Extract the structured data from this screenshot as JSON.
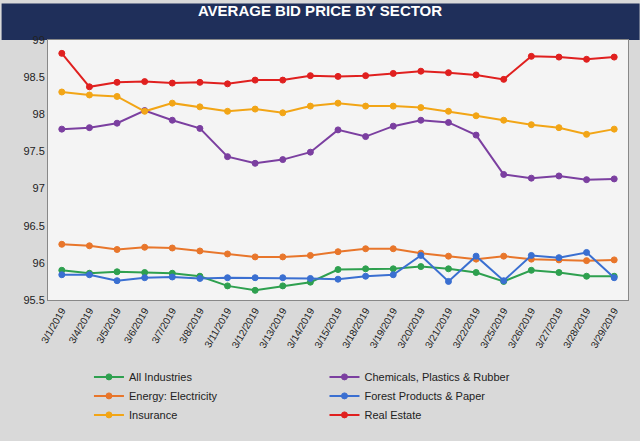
{
  "chart_data": {
    "type": "line",
    "title": "AVERAGE BID PRICE BY SECTOR",
    "categories": [
      "3/1/2019",
      "3/4/2019",
      "3/5/2019",
      "3/6/2019",
      "3/7/2019",
      "3/8/2019",
      "3/11/2019",
      "3/12/2019",
      "3/13/2019",
      "3/14/2019",
      "3/15/2019",
      "3/18/2019",
      "3/19/2019",
      "3/20/2019",
      "3/21/2019",
      "3/22/2019",
      "3/25/2019",
      "3/26/2019",
      "3/27/2019",
      "3/28/2019",
      "3/29/2019"
    ],
    "series": [
      {
        "name": "All Industries",
        "color": "#2ea04f",
        "marker": "circle",
        "values": [
          95.9,
          95.86,
          95.88,
          95.87,
          95.86,
          95.82,
          95.69,
          95.63,
          95.69,
          95.74,
          95.91,
          95.92,
          95.92,
          95.95,
          95.92,
          95.87,
          95.75,
          95.9,
          95.87,
          95.82,
          95.82
        ]
      },
      {
        "name": "Chemicals, Plastics & Rubber",
        "color": "#7b3fa0",
        "marker": "circle",
        "values": [
          97.8,
          97.82,
          97.88,
          98.05,
          97.92,
          97.81,
          97.43,
          97.34,
          97.39,
          97.49,
          97.79,
          97.7,
          97.84,
          97.92,
          97.89,
          97.72,
          97.19,
          97.14,
          97.17,
          97.12,
          97.13
        ]
      },
      {
        "name": "Energy: Electricity",
        "color": "#e8762b",
        "marker": "circle",
        "values": [
          96.25,
          96.23,
          96.18,
          96.21,
          96.2,
          96.16,
          96.12,
          96.08,
          96.08,
          96.1,
          96.15,
          96.19,
          96.19,
          96.13,
          96.09,
          96.05,
          96.09,
          96.05,
          96.04,
          96.03,
          96.04
        ]
      },
      {
        "name": "Forest Products & Paper",
        "color": "#3a6fd1",
        "marker": "circle",
        "values": [
          95.84,
          95.84,
          95.76,
          95.8,
          95.81,
          95.79,
          95.8,
          95.8,
          95.8,
          95.79,
          95.78,
          95.82,
          95.84,
          96.1,
          95.75,
          96.09,
          95.76,
          96.1,
          96.07,
          96.14,
          95.8
        ]
      },
      {
        "name": "Insurance",
        "color": "#f2a516",
        "marker": "circle",
        "values": [
          98.3,
          98.26,
          98.24,
          98.04,
          98.15,
          98.1,
          98.04,
          98.07,
          98.02,
          98.11,
          98.15,
          98.11,
          98.11,
          98.09,
          98.04,
          97.98,
          97.92,
          97.86,
          97.82,
          97.73,
          97.8
        ]
      },
      {
        "name": "Real Estate",
        "color": "#e0201f",
        "marker": "circle",
        "values": [
          98.82,
          98.37,
          98.43,
          98.44,
          98.42,
          98.43,
          98.41,
          98.46,
          98.46,
          98.52,
          98.51,
          98.52,
          98.55,
          98.58,
          98.56,
          98.53,
          98.47,
          98.78,
          98.77,
          98.74,
          98.77
        ]
      }
    ],
    "ylim": [
      95.5,
      99
    ],
    "yticks": [
      95.5,
      96,
      96.5,
      97,
      97.5,
      98,
      98.5,
      99
    ],
    "grid": false,
    "legend": "bottom"
  }
}
